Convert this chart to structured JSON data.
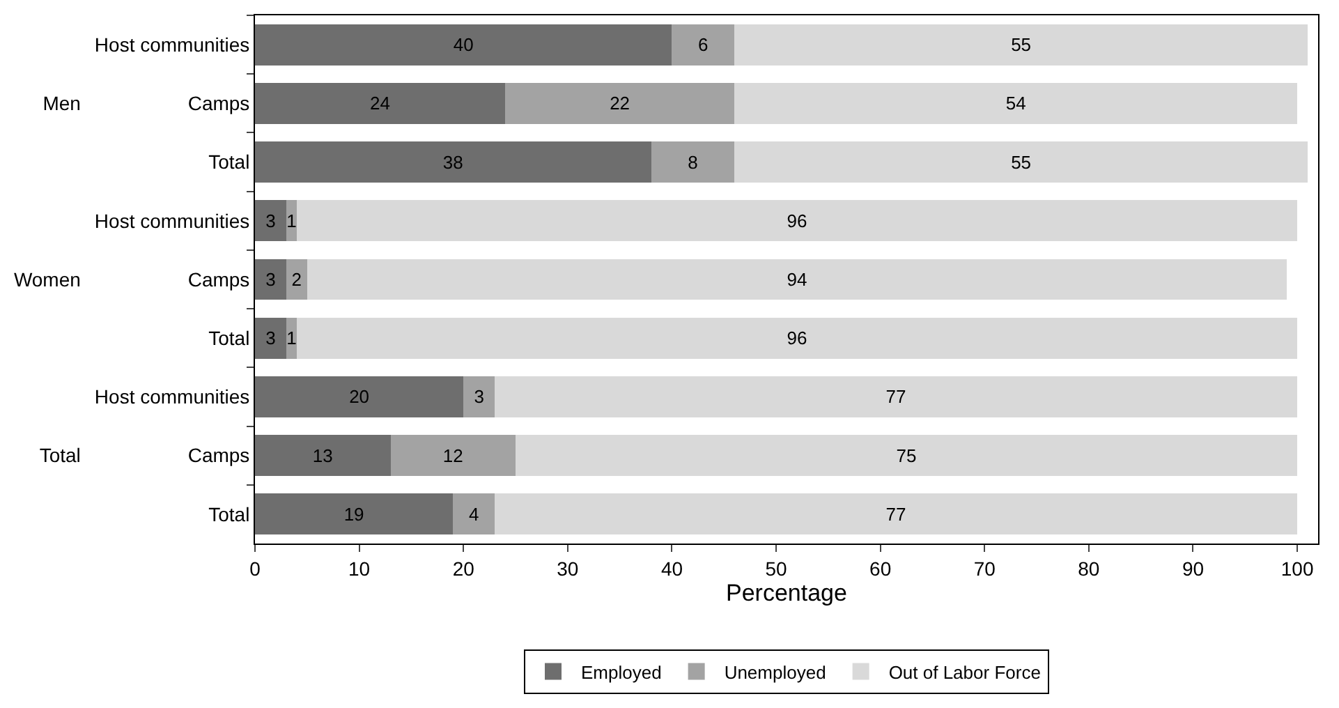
{
  "chart_data": {
    "type": "bar",
    "orientation": "horizontal",
    "stacked": true,
    "xlabel": "Percentage",
    "categories": [
      "Host communities",
      "Camps",
      "Total",
      "Host communities",
      "Camps",
      "Total",
      "Host communities",
      "Camps",
      "Total"
    ],
    "annotations": [
      "Men",
      "Women",
      "Total"
    ],
    "series": [
      {
        "name": "Employed",
        "color": "#6e6e6e",
        "values": [
          40,
          24,
          38,
          3,
          3,
          3,
          20,
          13,
          19
        ]
      },
      {
        "name": "Unemployed",
        "color": "#a3a3a3",
        "values": [
          6,
          22,
          8,
          1,
          2,
          1,
          3,
          12,
          4
        ]
      },
      {
        "name": "Out of Labor Force",
        "color": "#d9d9d9",
        "values": [
          55,
          54,
          55,
          96,
          94,
          96,
          77,
          75,
          77
        ]
      }
    ],
    "xlim": [
      0,
      102
    ],
    "xticks": [
      0,
      10,
      20,
      30,
      40,
      50,
      60,
      70,
      80,
      90,
      100
    ],
    "data_labels": true,
    "legend": "bottom"
  }
}
